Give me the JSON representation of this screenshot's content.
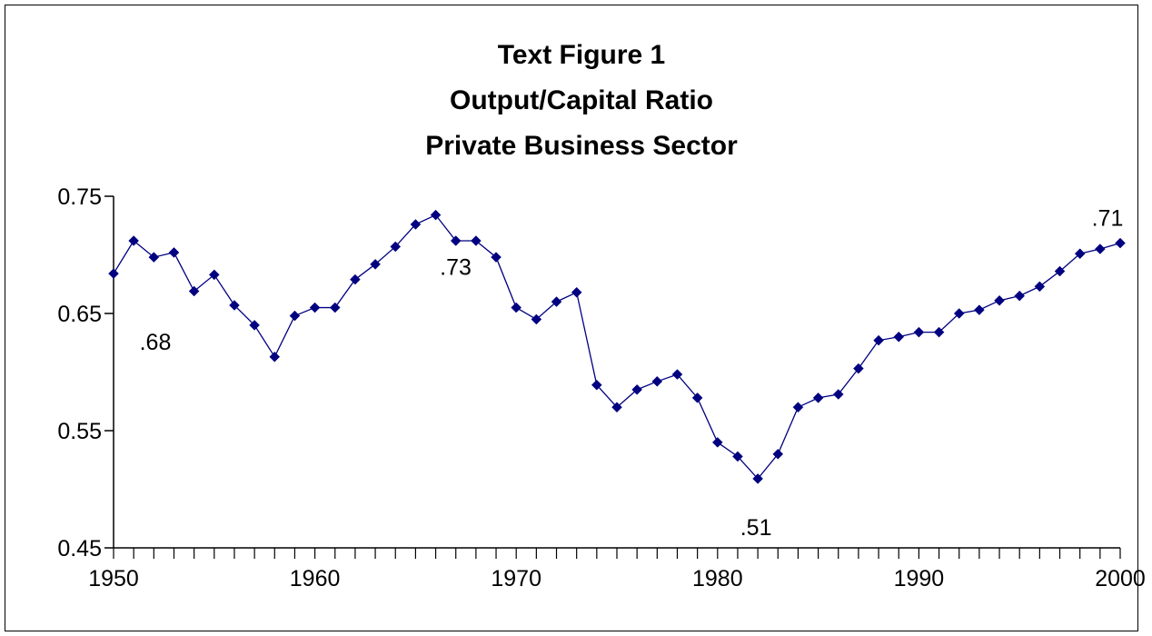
{
  "chart_data": {
    "type": "line",
    "title_lines": [
      "Text Figure 1",
      "Output/Capital Ratio",
      "Private Business Sector"
    ],
    "xlabel": "",
    "ylabel": "",
    "xlim": [
      1950,
      2000
    ],
    "ylim": [
      0.45,
      0.75
    ],
    "x_ticks": [
      "1950",
      "1960",
      "1970",
      "1980",
      "1990",
      "2000"
    ],
    "y_ticks": [
      "0.45",
      "0.55",
      "0.65",
      "0.75"
    ],
    "grid": false,
    "legend": false,
    "line_color": "#000080",
    "marker": "diamond",
    "series": [
      {
        "x": [
          1950,
          1951,
          1952,
          1953,
          1954,
          1955,
          1956,
          1957,
          1958,
          1959,
          1960,
          1961,
          1962,
          1963,
          1964,
          1965,
          1966,
          1967,
          1968,
          1969,
          1970,
          1971,
          1972,
          1973,
          1974,
          1975,
          1976,
          1977,
          1978,
          1979,
          1980,
          1981,
          1982,
          1983,
          1984,
          1985,
          1986,
          1987,
          1988,
          1989,
          1990,
          1991,
          1992,
          1993,
          1994,
          1995,
          1996,
          1997,
          1998,
          1999,
          2000
        ],
        "y": [
          0.684,
          0.712,
          0.698,
          0.702,
          0.669,
          0.683,
          0.657,
          0.64,
          0.613,
          0.648,
          0.655,
          0.655,
          0.679,
          0.692,
          0.707,
          0.726,
          0.734,
          0.712,
          0.712,
          0.698,
          0.655,
          0.645,
          0.66,
          0.668,
          0.589,
          0.57,
          0.585,
          0.592,
          0.598,
          0.578,
          0.54,
          0.528,
          0.509,
          0.53,
          0.57,
          0.578,
          0.581,
          0.603,
          0.627,
          0.63,
          0.634,
          0.634,
          0.65,
          0.653,
          0.661,
          0.665,
          0.673,
          0.686,
          0.701,
          0.705,
          0.71
        ]
      }
    ],
    "annotations": [
      {
        "text": ".68",
        "x": 1950,
        "y": 0.684
      },
      {
        "text": ".73",
        "x": 1966,
        "y": 0.734
      },
      {
        "text": ".51",
        "x": 1982,
        "y": 0.509
      },
      {
        "text": ".71",
        "x": 2000,
        "y": 0.71
      }
    ]
  }
}
